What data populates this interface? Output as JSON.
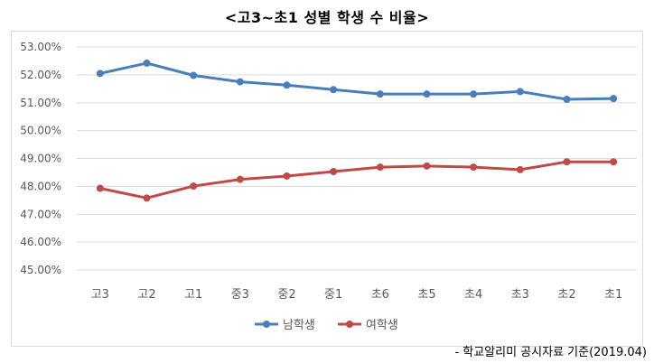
{
  "title": "<고3~초1 성별 학생 수 비율>",
  "source": "-  학교알리미 공시자료  기준(2019.04)",
  "chart_data": {
    "type": "line",
    "categories": [
      "고3",
      "고2",
      "고1",
      "중3",
      "중2",
      "중1",
      "초6",
      "초5",
      "초4",
      "초3",
      "초2",
      "초1"
    ],
    "series": [
      {
        "name": "남학생",
        "color": "#4a7ebb",
        "values": [
          52.05,
          52.42,
          51.98,
          51.75,
          51.63,
          51.47,
          51.31,
          51.31,
          51.31,
          51.4,
          51.12,
          51.15
        ]
      },
      {
        "name": "여학생",
        "color": "#be4b48",
        "values": [
          47.93,
          47.58,
          48.01,
          48.25,
          48.37,
          48.53,
          48.69,
          48.73,
          48.69,
          48.6,
          48.88,
          48.88
        ]
      }
    ],
    "ylim": [
      45,
      53
    ],
    "yticks": [
      "45.00%",
      "46.00%",
      "47.00%",
      "48.00%",
      "49.00%",
      "50.00%",
      "51.00%",
      "52.00%",
      "53.00%"
    ],
    "grid": true,
    "legend": "bottom-center"
  }
}
